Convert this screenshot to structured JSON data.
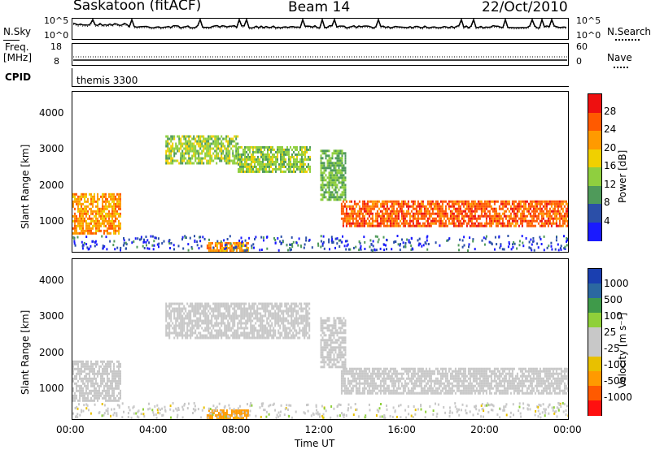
{
  "header": {
    "site": "Saskatoon (fitACF)",
    "beam": "Beam 14",
    "date": "22/Oct/2010"
  },
  "noise_panel": {
    "left_label": "N.Sky",
    "left_ticks": [
      "10^5",
      "10^0"
    ],
    "right_label": "N.Search",
    "right_ticks": [
      "10^5",
      "10^0"
    ]
  },
  "freq_panel": {
    "left_label_1": "Freq.",
    "left_label_2": "[MHz]",
    "left_ticks": [
      "18",
      "8"
    ],
    "right_label": "Nave",
    "right_ticks": [
      "60",
      "0"
    ]
  },
  "cpid_panel": {
    "label": "CPID",
    "program": "themis 3300"
  },
  "colors": {
    "power": [
      "#1a1aff",
      "#2b4fa8",
      "#4f9a5a",
      "#8fcf3f",
      "#f0d000",
      "#ff9a00",
      "#ff5a00",
      "#ee1010"
    ],
    "velocity": [
      "#ff1010",
      "#ff5a00",
      "#ff9a00",
      "#e8c000",
      "#c8c8c8",
      "#c8c8c8",
      "#8fd03a",
      "#3f9a4a",
      "#2b68a0",
      "#1a3fb0"
    ]
  },
  "chart_data": [
    {
      "type": "heatmap",
      "title": "",
      "xlabel": "",
      "ylabel": "Slant Range [km]",
      "x_ticks": [
        "00:00",
        "04:00",
        "08:00",
        "12:00",
        "16:00",
        "20:00",
        "00:00"
      ],
      "y_ticks": [
        "1000",
        "2000",
        "3000",
        "4000"
      ],
      "x_range_hours": [
        0,
        24
      ],
      "y_range_km": [
        180,
        4600
      ],
      "colorbar": {
        "label": "Power [dB]",
        "ticks": [
          "4",
          "8",
          "12",
          "16",
          "20",
          "24",
          "28"
        ],
        "range": [
          0,
          30
        ]
      },
      "regions": [
        {
          "t0": 0.0,
          "t1": 2.3,
          "r0": 700,
          "r1": 1800,
          "value": 22
        },
        {
          "t0": 4.5,
          "t1": 8.0,
          "r0": 2600,
          "r1": 3400,
          "value": 14
        },
        {
          "t0": 8.0,
          "t1": 11.5,
          "r0": 2400,
          "r1": 3100,
          "value": 14
        },
        {
          "t0": 12.0,
          "t1": 13.2,
          "r0": 1600,
          "r1": 3000,
          "value": 12
        },
        {
          "t0": 13.0,
          "t1": 24.0,
          "r0": 900,
          "r1": 1600,
          "value": 26
        },
        {
          "t0": 6.5,
          "t1": 8.5,
          "r0": 200,
          "r1": 450,
          "value": 22
        }
      ]
    },
    {
      "type": "heatmap",
      "title": "",
      "xlabel": "Time UT",
      "ylabel": "Slant Range [km]",
      "x_ticks": [
        "00:00",
        "04:00",
        "08:00",
        "12:00",
        "16:00",
        "20:00",
        "00:00"
      ],
      "y_ticks": [
        "1000",
        "2000",
        "3000",
        "4000"
      ],
      "x_range_hours": [
        0,
        24
      ],
      "y_range_km": [
        180,
        4600
      ],
      "colorbar": {
        "label": "Velocity [m s⁻¹]",
        "ticks": [
          "1000",
          "500",
          "100",
          "25",
          "-25",
          "-100",
          "-500",
          "-1000"
        ],
        "range": [
          -1000,
          1000
        ]
      },
      "regions": [
        {
          "t0": 0.0,
          "t1": 2.3,
          "r0": 700,
          "r1": 1800,
          "value": 0
        },
        {
          "t0": 4.5,
          "t1": 11.5,
          "r0": 2400,
          "r1": 3400,
          "value": 0
        },
        {
          "t0": 12.0,
          "t1": 13.2,
          "r0": 1600,
          "r1": 3000,
          "value": 0
        },
        {
          "t0": 13.0,
          "t1": 24.0,
          "r0": 900,
          "r1": 1600,
          "value": 0
        },
        {
          "t0": 6.5,
          "t1": 8.5,
          "r0": 200,
          "r1": 450,
          "value": -300
        }
      ]
    }
  ]
}
